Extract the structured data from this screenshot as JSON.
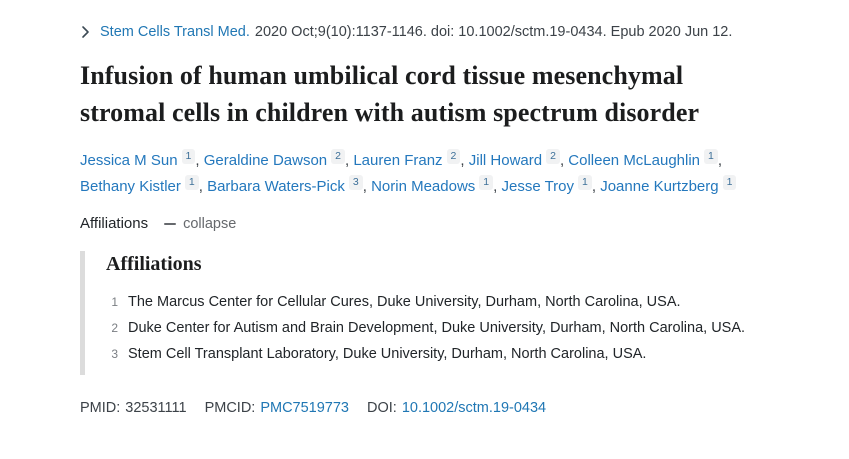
{
  "citation": {
    "journal_link": "Stem Cells Transl Med.",
    "details": "2020 Oct;9(10):1137-1146. doi: 10.1002/sctm.19-0434. Epub 2020 Jun 12."
  },
  "title": "Infusion of human umbilical cord tissue mesenchymal stromal cells in children with autism spectrum disorder",
  "authors_list": {
    "separator": ", ",
    "authors": [
      {
        "name": "Jessica M Sun",
        "sup": "1"
      },
      {
        "name": "Geraldine Dawson",
        "sup": "2"
      },
      {
        "name": "Lauren Franz",
        "sup": "2"
      },
      {
        "name": "Jill Howard",
        "sup": "2"
      },
      {
        "name": "Colleen McLaughlin",
        "sup": "1"
      },
      {
        "name": "Bethany Kistler",
        "sup": "1"
      },
      {
        "name": "Barbara Waters-Pick",
        "sup": "3"
      },
      {
        "name": "Norin Meadows",
        "sup": "1"
      },
      {
        "name": "Jesse Troy",
        "sup": "1"
      },
      {
        "name": "Joanne Kurtzberg",
        "sup": "1"
      }
    ]
  },
  "affiliations_bar": {
    "label": "Affiliations",
    "toggle_label": "collapse",
    "toggle_icon": "minus"
  },
  "affiliations": {
    "heading": "Affiliations",
    "items": [
      {
        "num": "1",
        "text": "The Marcus Center for Cellular Cures, Duke University, Durham, North Carolina, USA."
      },
      {
        "num": "2",
        "text": "Duke Center for Autism and Brain Development, Duke University, Durham, North Carolina, USA."
      },
      {
        "num": "3",
        "text": "Stem Cell Transplant Laboratory, Duke University, Durham, North Carolina, USA."
      }
    ]
  },
  "identifiers": {
    "pmid_label": "PMID:",
    "pmid": "32531111",
    "pmcid_label": "PMCID:",
    "pmcid": "PMC7519773",
    "doi_label": "DOI:",
    "doi": "10.1002/sctm.19-0434"
  },
  "colors": {
    "link_blue": "#2077b4",
    "text_dark": "#212529",
    "text_gray": "#66696d",
    "badge_bg": "#f1f2f3",
    "panel_bar_gray": "#dcdcdc"
  }
}
